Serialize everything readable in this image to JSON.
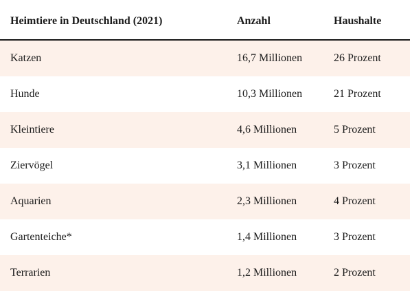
{
  "table": {
    "headers": {
      "name": "Heimtiere in Deutschland (2021)",
      "count": "Anzahl",
      "households": "Haushalte"
    },
    "rows": [
      {
        "name": "Katzen",
        "count": "16,7 Millionen",
        "households": "26 Prozent"
      },
      {
        "name": "Hunde",
        "count": "10,3 Millionen",
        "households": "21 Prozent"
      },
      {
        "name": "Kleintiere",
        "count": "4,6 Millionen",
        "households": "5 Prozent"
      },
      {
        "name": "Ziervögel",
        "count": "3,1 Millionen",
        "households": "3 Prozent"
      },
      {
        "name": "Aquarien",
        "count": "2,3 Millionen",
        "households": "4 Prozent"
      },
      {
        "name": "Gartenteiche*",
        "count": "1,4 Millionen",
        "households": "3 Prozent"
      },
      {
        "name": "Terrarien",
        "count": "1,2 Millionen",
        "households": "2 Prozent"
      }
    ]
  },
  "colors": {
    "row_shade": "#fdf1ea",
    "text": "#1a1a1a"
  }
}
